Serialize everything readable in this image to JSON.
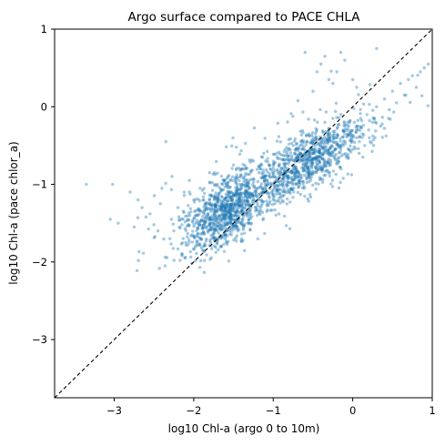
{
  "chart_data": {
    "type": "scatter",
    "title": "Argo surface compared to PACE CHLA",
    "xlabel": "log10 Chl-a (argo 0 to 10m)",
    "ylabel": "log10 Chl-a (pace chlor_a)",
    "xlim": [
      -3.75,
      1
    ],
    "ylim": [
      -3.75,
      1
    ],
    "xticks": [
      -3,
      -2,
      -1,
      0,
      1
    ],
    "yticks": [
      -3,
      -2,
      -1,
      0,
      1
    ],
    "xtick_labels": [
      "−3",
      "−2",
      "−1",
      "0",
      "1"
    ],
    "ytick_labels": [
      "−3",
      "−2",
      "−1",
      "0",
      "1"
    ],
    "grid": false,
    "reference_line": {
      "style": "dashed",
      "color": "#000000",
      "description": "1:1 line"
    },
    "marker_color": "#1f77b4",
    "marker_alpha": 0.4,
    "points": [
      [
        -3.35,
        -1.0
      ],
      [
        -3.02,
        -1.0
      ],
      [
        -3.05,
        -1.45
      ],
      [
        -2.95,
        -1.5
      ],
      [
        -2.8,
        -1.1
      ],
      [
        -2.75,
        -1.55
      ],
      [
        -2.7,
        -1.2
      ],
      [
        -2.65,
        -1.3
      ],
      [
        -2.6,
        -1.42
      ],
      [
        -2.55,
        -1.38
      ],
      [
        -2.5,
        -1.52
      ],
      [
        -2.45,
        -1.6
      ],
      [
        -2.42,
        -1.25
      ],
      [
        -2.4,
        -1.05
      ],
      [
        -2.35,
        -0.45
      ],
      [
        -2.3,
        -1.7
      ],
      [
        -2.28,
        -1.45
      ],
      [
        -2.25,
        -1.6
      ],
      [
        -2.2,
        -1.3
      ],
      [
        -2.18,
        -1.55
      ],
      [
        -2.15,
        -1.9
      ],
      [
        -2.12,
        -1.1
      ],
      [
        -2.1,
        -1.75
      ],
      [
        -2.05,
        -1.4
      ],
      [
        -2.02,
        -1.65
      ],
      [
        -2.0,
        -1.2
      ],
      [
        -1.98,
        -1.8
      ],
      [
        -1.95,
        -1.5
      ],
      [
        -1.92,
        -1.05
      ],
      [
        -1.9,
        -1.35
      ],
      [
        -1.88,
        -1.62
      ],
      [
        -1.85,
        -1.25
      ],
      [
        -1.82,
        -1.45
      ],
      [
        -1.8,
        -0.85
      ],
      [
        -1.78,
        -1.7
      ],
      [
        -1.75,
        -1.15
      ],
      [
        -1.72,
        -1.55
      ],
      [
        -1.7,
        -1.0
      ],
      [
        -1.68,
        -1.4
      ],
      [
        -1.65,
        -1.8
      ],
      [
        -1.62,
        -0.95
      ],
      [
        -1.6,
        -1.3
      ],
      [
        -1.58,
        -1.6
      ],
      [
        -1.55,
        -1.1
      ],
      [
        -1.52,
        -1.45
      ],
      [
        -1.5,
        -0.75
      ],
      [
        -1.48,
        -1.25
      ],
      [
        -1.45,
        -1.55
      ],
      [
        -1.42,
        -1.0
      ],
      [
        -1.4,
        -1.35
      ],
      [
        -1.38,
        -0.8
      ],
      [
        -1.35,
        -1.15
      ],
      [
        -1.32,
        -1.5
      ],
      [
        -1.3,
        -0.95
      ],
      [
        -1.28,
        -1.3
      ],
      [
        -1.25,
        -0.7
      ],
      [
        -1.22,
        -1.05
      ],
      [
        -1.2,
        -1.4
      ],
      [
        -1.18,
        -0.85
      ],
      [
        -1.15,
        -1.2
      ],
      [
        -1.12,
        -0.6
      ],
      [
        -1.1,
        -1.0
      ],
      [
        -1.08,
        -1.35
      ],
      [
        -1.05,
        -0.75
      ],
      [
        -1.02,
        -1.1
      ],
      [
        -1.0,
        -0.9
      ],
      [
        -0.98,
        -1.25
      ],
      [
        -0.95,
        -0.65
      ],
      [
        -0.92,
        -1.0
      ],
      [
        -0.9,
        -0.8
      ],
      [
        -0.88,
        -1.15
      ],
      [
        -0.85,
        -0.55
      ],
      [
        -0.82,
        -0.9
      ],
      [
        -0.8,
        -0.7
      ],
      [
        -0.78,
        -1.05
      ],
      [
        -0.75,
        -0.5
      ],
      [
        -0.72,
        -0.85
      ],
      [
        -0.7,
        -0.65
      ],
      [
        -0.68,
        -0.95
      ],
      [
        -0.65,
        -0.45
      ],
      [
        -0.62,
        -0.75
      ],
      [
        -0.6,
        -0.6
      ],
      [
        -0.58,
        -0.9
      ],
      [
        -0.55,
        -0.35
      ],
      [
        -0.52,
        -0.7
      ],
      [
        -0.5,
        -0.55
      ],
      [
        -0.48,
        -0.85
      ],
      [
        -0.45,
        -0.3
      ],
      [
        -0.42,
        -0.65
      ],
      [
        -0.4,
        -0.5
      ],
      [
        -0.38,
        -0.8
      ],
      [
        -0.35,
        -0.2
      ],
      [
        -0.32,
        -0.6
      ],
      [
        -0.3,
        -0.45
      ],
      [
        -0.28,
        -0.75
      ],
      [
        -0.25,
        -0.15
      ],
      [
        -0.22,
        -0.55
      ],
      [
        -0.2,
        -0.4
      ],
      [
        -0.18,
        -0.7
      ],
      [
        -0.15,
        -0.1
      ],
      [
        -0.12,
        -0.5
      ],
      [
        -0.1,
        -0.35
      ],
      [
        -0.08,
        -0.65
      ],
      [
        -0.05,
        -0.25
      ],
      [
        -0.02,
        -0.45
      ],
      [
        0.0,
        -0.55
      ],
      [
        0.02,
        -0.2
      ],
      [
        0.05,
        -0.4
      ],
      [
        0.08,
        -0.6
      ],
      [
        0.1,
        -0.15
      ],
      [
        0.12,
        -0.35
      ],
      [
        0.15,
        -0.5
      ],
      [
        0.18,
        -0.1
      ],
      [
        0.2,
        -0.3
      ],
      [
        0.22,
        -0.45
      ],
      [
        0.25,
        -0.2
      ],
      [
        0.28,
        -0.4
      ],
      [
        0.3,
        0.0
      ],
      [
        0.35,
        -0.25
      ],
      [
        0.4,
        0.1
      ],
      [
        0.45,
        -0.15
      ],
      [
        0.5,
        0.2
      ],
      [
        0.55,
        0.05
      ],
      [
        0.6,
        0.3
      ],
      [
        0.65,
        0.15
      ],
      [
        0.7,
        0.35
      ],
      [
        0.75,
        0.4
      ],
      [
        0.8,
        0.25
      ],
      [
        0.85,
        0.45
      ],
      [
        0.9,
        0.5
      ],
      [
        0.95,
        0.55
      ],
      [
        -0.6,
        0.7
      ],
      [
        -0.4,
        0.55
      ],
      [
        -0.35,
        0.65
      ],
      [
        -0.2,
        0.45
      ],
      [
        -0.15,
        0.7
      ],
      [
        -0.1,
        0.6
      ],
      [
        -0.25,
        0.3
      ],
      [
        0.3,
        0.75
      ],
      [
        0.0,
        0.35
      ],
      [
        0.05,
        0.25
      ],
      [
        -0.5,
        0.2
      ],
      [
        -0.45,
        0.45
      ],
      [
        -0.3,
        0.35
      ]
    ],
    "points_seed": 42,
    "points_count": 1800
  }
}
